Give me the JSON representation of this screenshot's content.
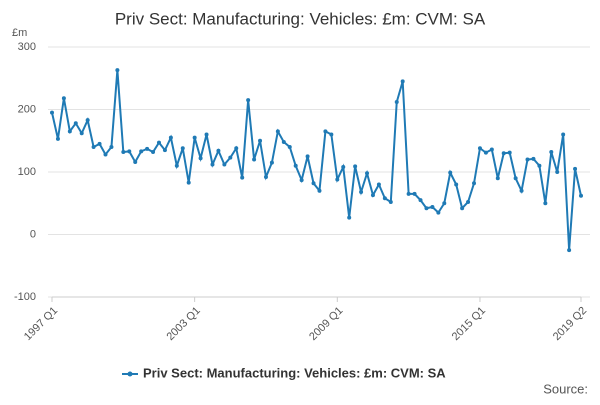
{
  "chart_data": {
    "type": "line",
    "title": "Priv Sect: Manufacturing: Vehicles: £m: CVM: SA",
    "y_unit": "£m",
    "source": "Source:",
    "categories": [
      "1997 Q1",
      null,
      null,
      null,
      null,
      null,
      null,
      null,
      null,
      null,
      null,
      null,
      null,
      null,
      null,
      null,
      null,
      null,
      null,
      null,
      null,
      null,
      null,
      null,
      "2003 Q1",
      null,
      null,
      null,
      null,
      null,
      null,
      null,
      null,
      null,
      null,
      null,
      null,
      null,
      null,
      null,
      null,
      null,
      null,
      null,
      null,
      null,
      null,
      null,
      "2009 Q1",
      null,
      null,
      null,
      null,
      null,
      null,
      null,
      null,
      null,
      null,
      null,
      null,
      null,
      null,
      null,
      null,
      null,
      null,
      null,
      null,
      null,
      null,
      null,
      "2015 Q1",
      null,
      null,
      null,
      null,
      null,
      null,
      null,
      null,
      null,
      null,
      null,
      null,
      null,
      null,
      null,
      null,
      "2019 Q2"
    ],
    "series": [
      {
        "name": "Priv Sect: Manufacturing: Vehicles: £m: CVM: SA",
        "color": "#1f7ab5",
        "values": [
          195,
          153,
          218,
          165,
          178,
          162,
          183,
          140,
          145,
          128,
          140,
          263,
          132,
          133,
          116,
          133,
          137,
          132,
          147,
          135,
          155,
          110,
          138,
          83,
          155,
          122,
          160,
          112,
          134,
          112,
          123,
          138,
          91,
          215,
          120,
          150,
          92,
          115,
          165,
          148,
          140,
          110,
          87,
          125,
          82,
          70,
          165,
          160,
          88,
          108,
          27,
          109,
          68,
          98,
          63,
          80,
          58,
          52,
          212,
          245,
          65,
          65,
          55,
          42,
          44,
          35,
          50,
          99,
          80,
          42,
          52,
          82,
          138,
          131,
          136,
          90,
          130,
          131,
          90,
          70,
          120,
          121,
          110,
          50,
          132,
          100,
          160,
          -25,
          105,
          62
        ]
      }
    ],
    "ylim": [
      -100,
      300
    ],
    "yticks": [
      -100,
      0,
      100,
      200,
      300
    ],
    "grid": true,
    "legend": "bottom"
  }
}
